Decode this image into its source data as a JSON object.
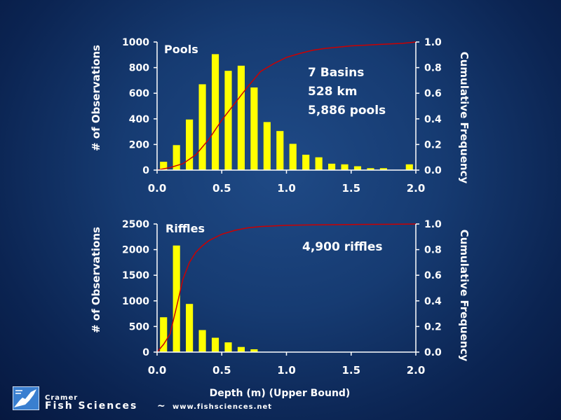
{
  "chart_data": [
    {
      "type": "bar",
      "title": "",
      "panel_label": "Pools",
      "annotation": [
        "7 Basins",
        "528 km",
        "5,886 pools"
      ],
      "ylabel": "# of Observations",
      "y2label": "Cumulative Frequency",
      "xlim": [
        0.0,
        2.0
      ],
      "ylim": [
        0,
        1000
      ],
      "y2lim": [
        0.0,
        1.0
      ],
      "x_ticks": [
        "0.0",
        "0.5",
        "1.0",
        "1.5",
        "2.0"
      ],
      "y_ticks": [
        "0",
        "200",
        "400",
        "600",
        "800",
        "1000"
      ],
      "y2_ticks": [
        "0.0",
        "0.2",
        "0.4",
        "0.6",
        "0.8",
        "1.0"
      ],
      "x": [
        0.1,
        0.2,
        0.3,
        0.4,
        0.5,
        0.6,
        0.7,
        0.8,
        0.9,
        1.0,
        1.1,
        1.2,
        1.3,
        1.4,
        1.5,
        1.6,
        1.7,
        1.8,
        2.0
      ],
      "values": [
        65,
        195,
        395,
        670,
        905,
        775,
        815,
        645,
        375,
        305,
        205,
        120,
        100,
        50,
        45,
        30,
        15,
        15,
        45
      ],
      "cumulative": {
        "x": [
          0.0,
          0.1,
          0.2,
          0.3,
          0.4,
          0.5,
          0.6,
          0.7,
          0.8,
          0.9,
          1.0,
          1.1,
          1.2,
          1.3,
          1.4,
          1.5,
          1.6,
          1.7,
          1.8,
          1.9,
          2.0
        ],
        "y": [
          0.0,
          0.02,
          0.05,
          0.12,
          0.24,
          0.39,
          0.52,
          0.65,
          0.77,
          0.83,
          0.88,
          0.91,
          0.935,
          0.95,
          0.96,
          0.97,
          0.975,
          0.98,
          0.985,
          0.99,
          1.0
        ]
      }
    },
    {
      "type": "bar",
      "title": "",
      "panel_label": "Riffles",
      "annotation": [
        "4,900 riffles"
      ],
      "ylabel": "# of Observations",
      "y2label": "Cumulative Frequency",
      "xlabel": "Depth (m) (Upper Bound)",
      "xlim": [
        0.0,
        2.0
      ],
      "ylim": [
        0,
        2500
      ],
      "y2lim": [
        0.0,
        1.0
      ],
      "x_ticks": [
        "0.0",
        "0.5",
        "1.0",
        "1.5",
        "2.0"
      ],
      "y_ticks": [
        "0",
        "500",
        "1000",
        "1500",
        "2000",
        "2500"
      ],
      "y2_ticks": [
        "0.0",
        "0.2",
        "0.4",
        "0.6",
        "0.8",
        "1.0"
      ],
      "x": [
        0.1,
        0.2,
        0.3,
        0.4,
        0.5,
        0.6,
        0.7,
        0.8
      ],
      "values": [
        680,
        2080,
        940,
        430,
        280,
        190,
        100,
        55
      ],
      "cumulative": {
        "x": [
          0.0,
          0.05,
          0.1,
          0.15,
          0.2,
          0.25,
          0.3,
          0.35,
          0.4,
          0.5,
          0.6,
          0.7,
          0.8,
          0.9,
          1.0,
          1.2,
          1.5,
          1.8,
          2.0
        ],
        "y": [
          0.0,
          0.06,
          0.14,
          0.35,
          0.57,
          0.7,
          0.78,
          0.83,
          0.87,
          0.92,
          0.95,
          0.97,
          0.98,
          0.985,
          0.99,
          0.993,
          0.996,
          0.998,
          1.0
        ]
      }
    }
  ],
  "footer": {
    "brand_top": "Cramer",
    "brand_main": "Fish Sciences",
    "separator": "~",
    "url": "www.fishsciences.net"
  },
  "colors": {
    "bar": "#ffff00",
    "cumulative_line": "#cc0000",
    "axis": "#ffffff",
    "background": "#163b72"
  }
}
